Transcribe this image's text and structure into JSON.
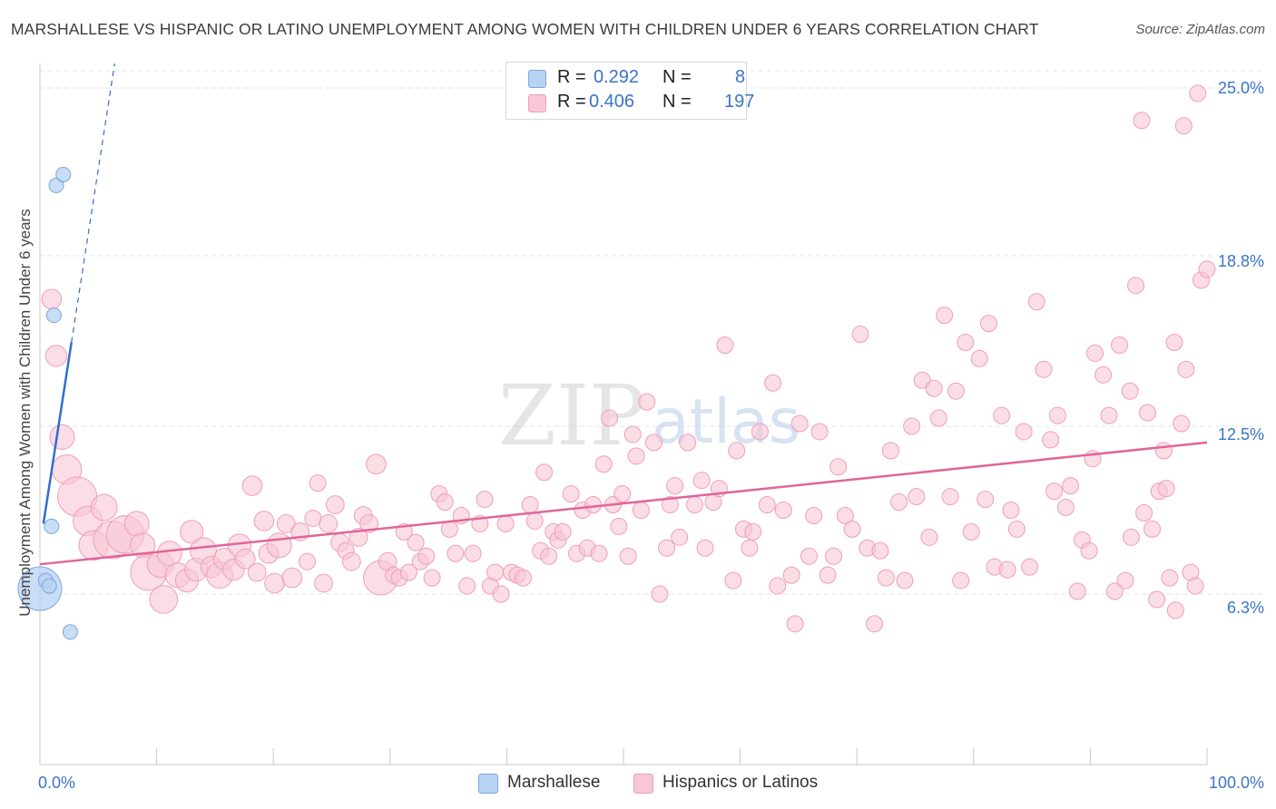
{
  "title": "MARSHALLESE VS HISPANIC OR LATINO UNEMPLOYMENT AMONG WOMEN WITH CHILDREN UNDER 6 YEARS CORRELATION CHART",
  "source": "Source: ZipAtlas.com",
  "watermark": {
    "zip": "ZIP",
    "atlas": "atlas"
  },
  "legend": {
    "r_label": "R =",
    "n_label": "N =",
    "rows": [
      {
        "name": "Marshallese",
        "r": "0.292",
        "n": "8"
      },
      {
        "name": "Hispanics or Latinos",
        "r": "0.406",
        "n": "197"
      }
    ]
  },
  "colors": {
    "marshallese_fill": "#b8d2f3",
    "marshallese_stroke": "#7aa6dc",
    "marshallese_line": "#2f6fcf",
    "hispanic_fill": "#f8c7d6",
    "hispanic_stroke": "#ee9fb8",
    "hispanic_line": "#e0659a",
    "axis_label": "#3a74c9",
    "grid": "#e4e4e4"
  },
  "chart_data": {
    "type": "scatter",
    "title": "MARSHALLESE VS HISPANIC OR LATINO UNEMPLOYMENT AMONG WOMEN WITH CHILDREN UNDER 6 YEARS CORRELATION CHART",
    "xlabel": "",
    "ylabel": "Unemployment Among Women with Children Under 6 years",
    "x_tick_labels": [
      "0.0%",
      "100.0%"
    ],
    "y_tick_labels": [
      "6.3%",
      "12.5%",
      "18.8%",
      "25.0%"
    ],
    "y_ticks": [
      6.3,
      12.5,
      18.8,
      25.0
    ],
    "xlim": [
      0,
      100
    ],
    "ylim": [
      0,
      26.5
    ],
    "legend_position": "top-center",
    "series": [
      {
        "name": "Marshallese",
        "r": 0.292,
        "n": 8,
        "points": [
          [
            0.0,
            6.5,
            3
          ],
          [
            0.5,
            6.8,
            1
          ],
          [
            0.8,
            6.6,
            1
          ],
          [
            2.6,
            4.9,
            1
          ],
          [
            1.0,
            8.8,
            1
          ],
          [
            1.2,
            16.6,
            1
          ],
          [
            1.4,
            21.4,
            1
          ],
          [
            2.0,
            21.8,
            1
          ]
        ],
        "trend": {
          "solid": [
            [
              0.3,
              8.9
            ],
            [
              2.7,
              15.6
            ]
          ],
          "dashed": [
            [
              2.7,
              15.6
            ],
            [
              6.4,
              25.9
            ]
          ]
        }
      },
      {
        "name": "Hispanics or Latinos",
        "r": 0.406,
        "n": 197,
        "points": [
          [
            1.0,
            17.2,
            1.2
          ],
          [
            1.4,
            15.1,
            1.3
          ],
          [
            1.9,
            12.1,
            1.5
          ],
          [
            2.3,
            10.9,
            1.8
          ],
          [
            3.2,
            9.9,
            2.4
          ],
          [
            4.1,
            9.0,
            1.8
          ],
          [
            4.6,
            8.1,
            1.8
          ],
          [
            5.5,
            9.5,
            1.6
          ],
          [
            6.2,
            8.3,
            2.3
          ],
          [
            7.3,
            8.5,
            2.3
          ],
          [
            8.3,
            8.9,
            1.5
          ],
          [
            8.8,
            8.1,
            1.5
          ],
          [
            9.3,
            7.1,
            2.2
          ],
          [
            10.3,
            7.4,
            1.6
          ],
          [
            10.6,
            6.1,
            1.7
          ],
          [
            11.1,
            7.8,
            1.5
          ],
          [
            11.8,
            7.0,
            1.5
          ],
          [
            12.6,
            6.8,
            1.4
          ],
          [
            13.0,
            8.6,
            1.4
          ],
          [
            13.4,
            7.2,
            1.4
          ],
          [
            14.0,
            7.9,
            1.6
          ],
          [
            14.7,
            7.3,
            1.3
          ],
          [
            15.4,
            7.0,
            1.6
          ],
          [
            15.8,
            7.6,
            1.3
          ],
          [
            16.6,
            7.2,
            1.3
          ],
          [
            17.1,
            8.1,
            1.4
          ],
          [
            17.6,
            7.6,
            1.2
          ],
          [
            18.2,
            10.3,
            1.2
          ],
          [
            18.6,
            7.1,
            1.1
          ],
          [
            19.2,
            9.0,
            1.2
          ],
          [
            19.6,
            7.8,
            1.2
          ],
          [
            20.1,
            6.7,
            1.2
          ],
          [
            20.5,
            8.1,
            1.5
          ],
          [
            21.1,
            8.9,
            1.1
          ],
          [
            21.6,
            6.9,
            1.2
          ],
          [
            22.3,
            8.6,
            1.1
          ],
          [
            22.9,
            7.5,
            1.0
          ],
          [
            23.4,
            9.1,
            1.0
          ],
          [
            23.8,
            10.4,
            1.0
          ],
          [
            24.3,
            6.7,
            1.1
          ],
          [
            24.7,
            8.9,
            1.1
          ],
          [
            25.3,
            9.6,
            1.1
          ],
          [
            25.7,
            8.2,
            1.1
          ],
          [
            26.2,
            7.9,
            1.0
          ],
          [
            26.7,
            7.5,
            1.1
          ],
          [
            27.3,
            8.4,
            1.1
          ],
          [
            27.7,
            9.2,
            1.1
          ],
          [
            28.2,
            8.9,
            1.1
          ],
          [
            28.8,
            11.1,
            1.2
          ],
          [
            29.2,
            6.9,
            2.1
          ],
          [
            29.8,
            7.5,
            1.1
          ],
          [
            30.3,
            7.0,
            1.0
          ],
          [
            30.8,
            6.9,
            1.0
          ],
          [
            31.2,
            8.6,
            1.0
          ],
          [
            31.6,
            7.1,
            1.0
          ],
          [
            32.2,
            8.2,
            1.0
          ],
          [
            32.6,
            7.5,
            1.0
          ],
          [
            33.1,
            7.7,
            1.0
          ],
          [
            33.6,
            6.9,
            1.0
          ],
          [
            34.2,
            10.0,
            1.0
          ],
          [
            34.7,
            9.7,
            1.0
          ],
          [
            35.1,
            8.7,
            1.0
          ],
          [
            35.6,
            7.8,
            1.0
          ],
          [
            36.1,
            9.2,
            1.0
          ],
          [
            36.6,
            6.6,
            1.0
          ],
          [
            37.1,
            7.8,
            1.0
          ],
          [
            37.7,
            8.9,
            1.0
          ],
          [
            38.1,
            9.8,
            1.0
          ],
          [
            38.6,
            6.6,
            1.0
          ],
          [
            39.0,
            7.1,
            1.0
          ],
          [
            39.5,
            6.3,
            1.0
          ],
          [
            39.9,
            8.9,
            1.0
          ],
          [
            40.4,
            7.1,
            1.0
          ],
          [
            40.9,
            7.0,
            1.0
          ],
          [
            41.4,
            6.9,
            1.0
          ],
          [
            42.0,
            9.6,
            1.0
          ],
          [
            42.4,
            9.0,
            1.0
          ],
          [
            42.9,
            7.9,
            1.0
          ],
          [
            43.2,
            10.8,
            1.0
          ],
          [
            43.6,
            7.7,
            1.0
          ],
          [
            44.0,
            8.6,
            1.0
          ],
          [
            44.4,
            8.3,
            1.0
          ],
          [
            44.8,
            8.6,
            1.0
          ],
          [
            45.5,
            10.0,
            1.0
          ],
          [
            46.0,
            7.8,
            1.0
          ],
          [
            46.5,
            9.4,
            1.0
          ],
          [
            46.9,
            8.0,
            1.0
          ],
          [
            47.4,
            9.6,
            1.0
          ],
          [
            47.9,
            7.8,
            1.0
          ],
          [
            48.3,
            11.1,
            1.0
          ],
          [
            48.8,
            12.8,
            1.0
          ],
          [
            49.1,
            9.6,
            1.0
          ],
          [
            49.6,
            8.8,
            1.0
          ],
          [
            49.9,
            10.0,
            1.0
          ],
          [
            50.4,
            7.7,
            1.0
          ],
          [
            50.8,
            12.2,
            1.0
          ],
          [
            51.1,
            11.4,
            1.0
          ],
          [
            51.5,
            9.4,
            1.0
          ],
          [
            52.0,
            13.4,
            1.0
          ],
          [
            52.6,
            11.9,
            1.0
          ],
          [
            53.1,
            6.3,
            1.0
          ],
          [
            53.7,
            8.0,
            1.0
          ],
          [
            54.0,
            9.6,
            1.0
          ],
          [
            54.4,
            10.3,
            1.0
          ],
          [
            54.8,
            8.4,
            1.0
          ],
          [
            55.5,
            11.9,
            1.0
          ],
          [
            56.1,
            9.6,
            1.0
          ],
          [
            56.7,
            10.5,
            1.0
          ],
          [
            57.0,
            8.0,
            1.0
          ],
          [
            57.7,
            9.7,
            1.0
          ],
          [
            58.2,
            10.2,
            1.0
          ],
          [
            58.7,
            15.5,
            1.0
          ],
          [
            59.4,
            6.8,
            1.0
          ],
          [
            59.7,
            11.6,
            1.0
          ],
          [
            60.3,
            8.7,
            1.0
          ],
          [
            60.8,
            8.0,
            1.0
          ],
          [
            61.1,
            8.6,
            1.0
          ],
          [
            61.7,
            12.3,
            1.0
          ],
          [
            62.3,
            9.6,
            1.0
          ],
          [
            62.8,
            14.1,
            1.0
          ],
          [
            63.2,
            6.6,
            1.0
          ],
          [
            63.7,
            9.4,
            1.0
          ],
          [
            64.4,
            7.0,
            1.0
          ],
          [
            64.7,
            5.2,
            1.0
          ],
          [
            65.1,
            12.6,
            1.0
          ],
          [
            65.9,
            7.7,
            1.0
          ],
          [
            66.3,
            9.2,
            1.0
          ],
          [
            66.8,
            12.3,
            1.0
          ],
          [
            67.5,
            7.0,
            1.0
          ],
          [
            68.0,
            7.7,
            1.0
          ],
          [
            68.4,
            11.0,
            1.0
          ],
          [
            69.0,
            9.2,
            1.0
          ],
          [
            69.6,
            8.7,
            1.0
          ],
          [
            70.3,
            15.9,
            1.0
          ],
          [
            70.9,
            8.0,
            1.0
          ],
          [
            71.5,
            5.2,
            1.0
          ],
          [
            72.0,
            7.9,
            1.0
          ],
          [
            72.5,
            6.9,
            1.0
          ],
          [
            72.9,
            11.6,
            1.0
          ],
          [
            73.6,
            9.7,
            1.0
          ],
          [
            74.1,
            6.8,
            1.0
          ],
          [
            74.7,
            12.5,
            1.0
          ],
          [
            75.1,
            9.9,
            1.0
          ],
          [
            75.6,
            14.2,
            1.0
          ],
          [
            76.2,
            8.4,
            1.0
          ],
          [
            76.6,
            13.9,
            1.0
          ],
          [
            77.0,
            12.8,
            1.0
          ],
          [
            77.5,
            16.6,
            1.0
          ],
          [
            78.0,
            9.9,
            1.0
          ],
          [
            78.5,
            13.8,
            1.0
          ],
          [
            78.9,
            6.8,
            1.0
          ],
          [
            79.3,
            15.6,
            1.0
          ],
          [
            79.8,
            8.6,
            1.0
          ],
          [
            80.5,
            15.0,
            1.0
          ],
          [
            81.0,
            9.8,
            1.0
          ],
          [
            81.3,
            16.3,
            1.0
          ],
          [
            81.8,
            7.3,
            1.0
          ],
          [
            82.4,
            12.9,
            1.0
          ],
          [
            82.9,
            7.2,
            1.0
          ],
          [
            83.2,
            9.4,
            1.0
          ],
          [
            83.7,
            8.7,
            1.0
          ],
          [
            84.3,
            12.3,
            1.0
          ],
          [
            84.8,
            7.3,
            1.0
          ],
          [
            85.4,
            17.1,
            1.0
          ],
          [
            86.0,
            14.6,
            1.0
          ],
          [
            86.6,
            12.0,
            1.0
          ],
          [
            87.2,
            12.9,
            1.0
          ],
          [
            87.9,
            9.5,
            1.0
          ],
          [
            88.3,
            10.3,
            1.0
          ],
          [
            88.9,
            6.4,
            1.0
          ],
          [
            89.3,
            8.3,
            1.0
          ],
          [
            89.9,
            7.9,
            1.0
          ],
          [
            90.4,
            15.2,
            1.0
          ],
          [
            91.1,
            14.4,
            1.0
          ],
          [
            91.6,
            12.9,
            1.0
          ],
          [
            92.1,
            6.4,
            1.0
          ],
          [
            92.5,
            15.5,
            1.0
          ],
          [
            93.0,
            6.8,
            1.0
          ],
          [
            93.5,
            8.4,
            1.0
          ],
          [
            93.9,
            17.7,
            1.0
          ],
          [
            94.4,
            23.8,
            1.0
          ],
          [
            94.9,
            13.0,
            1.0
          ],
          [
            95.3,
            8.7,
            1.0
          ],
          [
            95.9,
            10.1,
            1.0
          ],
          [
            96.3,
            11.6,
            1.0
          ],
          [
            96.8,
            6.9,
            1.0
          ],
          [
            97.3,
            5.7,
            1.0
          ],
          [
            97.8,
            12.6,
            1.0
          ],
          [
            98.2,
            14.6,
            1.0
          ],
          [
            98.6,
            7.1,
            1.0
          ],
          [
            99.0,
            6.6,
            1.0
          ],
          [
            99.5,
            17.9,
            1.0
          ],
          [
            100.0,
            18.3,
            1.0
          ],
          [
            99.2,
            24.8,
            1.0
          ],
          [
            98.0,
            23.6,
            1.0
          ],
          [
            97.2,
            15.6,
            1.0
          ],
          [
            96.5,
            10.2,
            1.0
          ],
          [
            95.7,
            6.1,
            1.0
          ],
          [
            94.6,
            9.3,
            1.0
          ],
          [
            93.4,
            13.8,
            1.0
          ],
          [
            90.2,
            11.3,
            1.0
          ],
          [
            86.9,
            10.1,
            1.0
          ]
        ],
        "trend": {
          "solid": [
            [
              0,
              7.4
            ],
            [
              100,
              11.9
            ]
          ]
        }
      }
    ]
  }
}
